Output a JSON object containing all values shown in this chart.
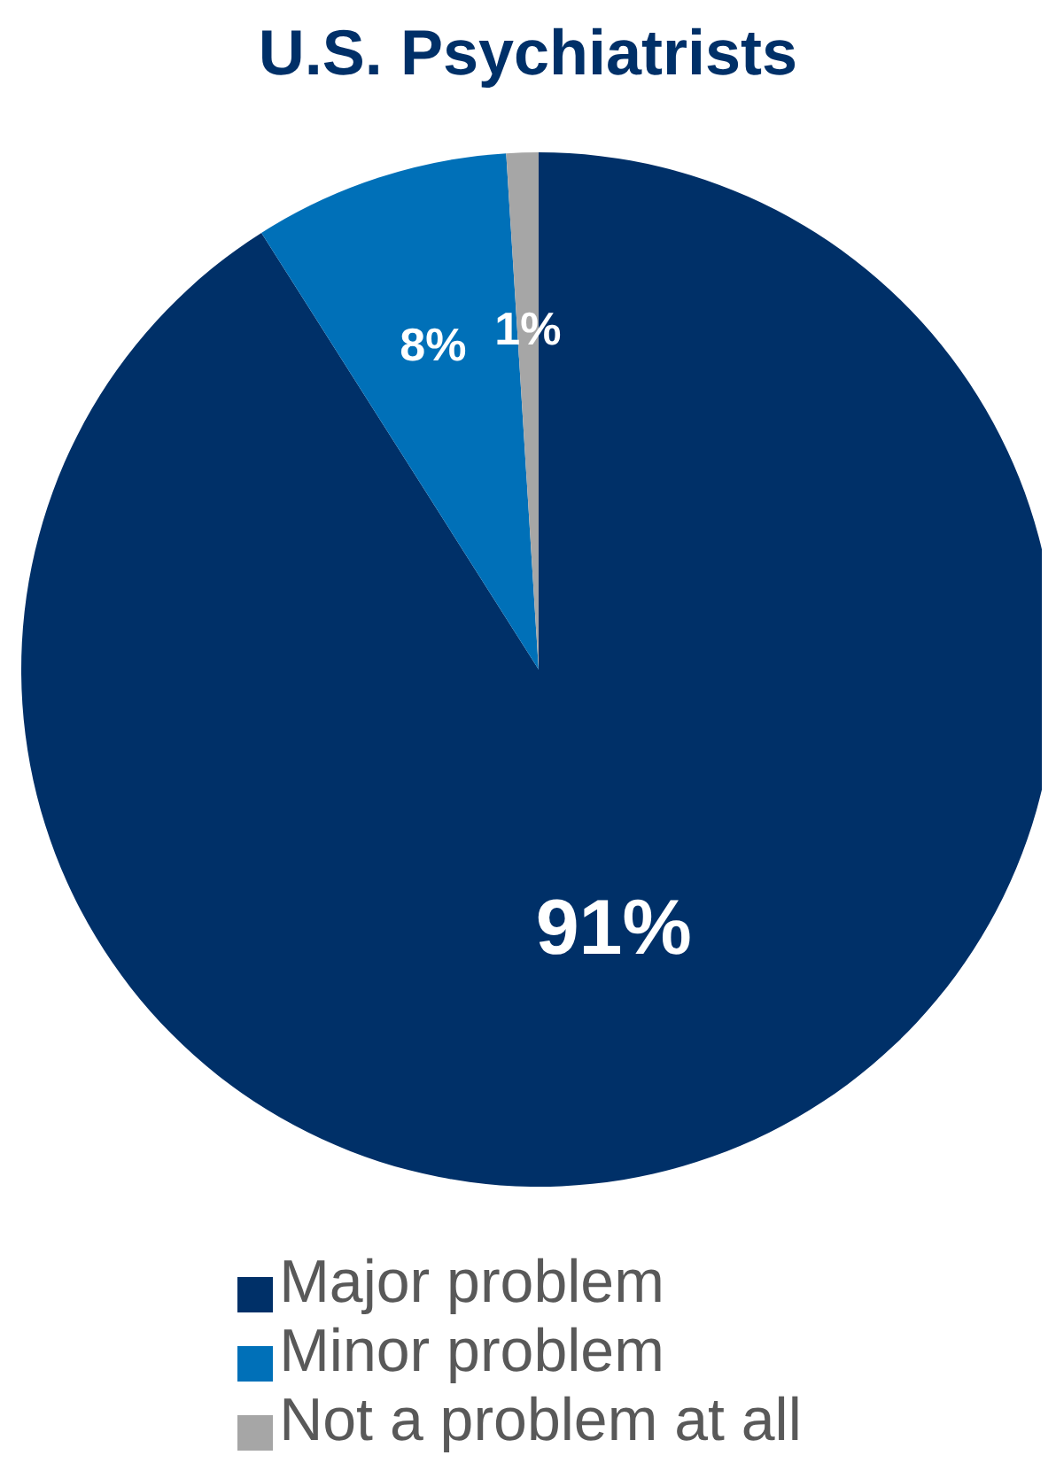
{
  "chart_data": {
    "type": "pie",
    "title": "U.S. Psychiatrists",
    "categories": [
      "Major problem",
      "Minor problem",
      "Not a problem at all"
    ],
    "values": [
      91,
      8,
      1
    ],
    "colors": [
      "#003068",
      "#0070b8",
      "#a6a6a6"
    ],
    "value_labels": [
      "91%",
      "8%",
      "1%"
    ],
    "legend": "bottom"
  }
}
